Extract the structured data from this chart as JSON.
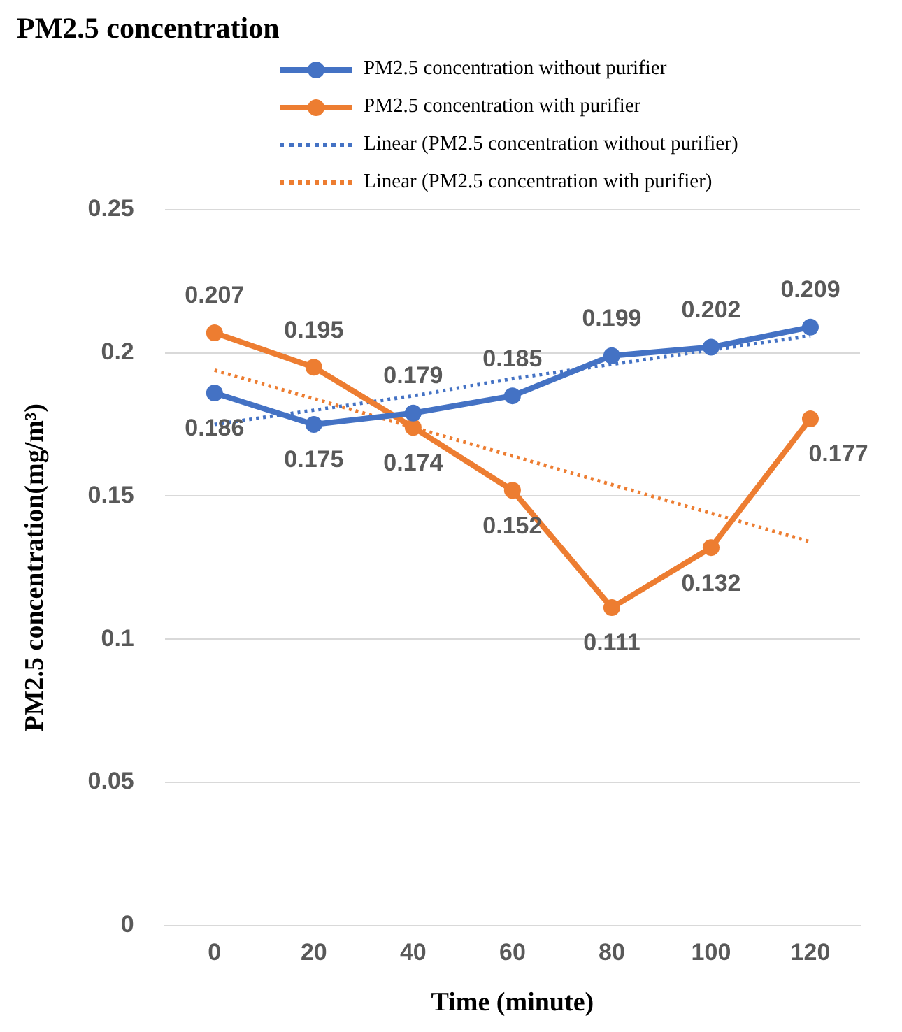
{
  "chart_data": {
    "type": "line",
    "title": "PM2.5 concentration",
    "xlabel": "Time (minute)",
    "ylabel": "PM2.5 concentration(mg/m³)",
    "x": [
      0,
      20,
      40,
      60,
      80,
      100,
      120
    ],
    "xlim": [
      -10,
      130
    ],
    "xticks": [
      0,
      20,
      40,
      60,
      80,
      100,
      120
    ],
    "ylim": [
      0,
      0.25
    ],
    "yticks": [
      0,
      0.05,
      0.1,
      0.15,
      0.2,
      0.25
    ],
    "grid": "y",
    "legend": "top right",
    "marker": "circle",
    "line_style": "solid",
    "series": [
      {
        "name": "PM2.5 concentration without purifier",
        "color": "#4472c4",
        "values": [
          0.186,
          0.175,
          0.179,
          0.185,
          0.199,
          0.202,
          0.209
        ],
        "value_labels": [
          "0.186",
          "0.175",
          "0.179",
          "0.185",
          "0.199",
          "0.202",
          "0.209"
        ]
      },
      {
        "name": "PM2.5 concentration with purifier",
        "color": "#ed7d31",
        "values": [
          0.207,
          0.195,
          0.174,
          0.152,
          0.111,
          0.132,
          0.177
        ],
        "value_labels": [
          "0.207",
          "0.195",
          "0.174",
          "0.152",
          "0.111",
          "0.132",
          "0.177"
        ]
      },
      {
        "name": "Linear (PM2.5 concentration without purifier)",
        "type": "line",
        "color": "#4472c4",
        "values": [
          0.175,
          0.18,
          0.185,
          0.191,
          0.196,
          0.201,
          0.206
        ],
        "marker": "none",
        "line_style": "dotted"
      },
      {
        "name": "Linear (PM2.5 concentration with purifier)",
        "type": "line",
        "color": "#ed7d31",
        "values": [
          0.194,
          0.184,
          0.174,
          0.164,
          0.154,
          0.144,
          0.134
        ],
        "marker": "none",
        "line_style": "dotted"
      }
    ]
  }
}
